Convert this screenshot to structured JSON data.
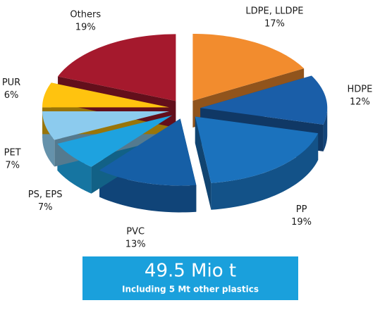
{
  "chart_data": {
    "type": "pie",
    "categories": [
      "LDPE, LLDPE",
      "HDPE",
      "PP",
      "PVC",
      "PS, EPS",
      "PET",
      "PUR",
      "Others"
    ],
    "values": [
      17,
      12,
      19,
      13,
      7,
      7,
      6,
      19
    ],
    "value_labels": [
      "17%",
      "12%",
      "19%",
      "13%",
      "7%",
      "7%",
      "6%",
      "19%"
    ],
    "colors": [
      "#f28c2e",
      "#1a5ea8",
      "#1b72bd",
      "#165fa6",
      "#1ea2df",
      "#8ccbee",
      "#ffc30f",
      "#a5192d"
    ],
    "annotations": [
      "49.5 Mio t",
      "Including 5 Mt other plastics"
    ]
  }
}
